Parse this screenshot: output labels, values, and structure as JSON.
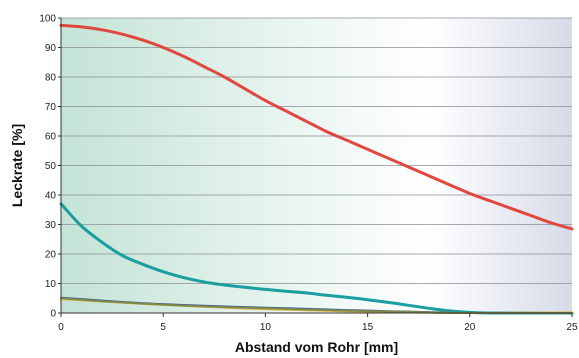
{
  "chart_data": {
    "type": "line",
    "title": "",
    "xlabel": "Abstand vom Rohr [mm]",
    "ylabel": "Leckrate [%]",
    "xlim": [
      0,
      25
    ],
    "ylim": [
      0,
      100
    ],
    "xticks": [
      0,
      5,
      10,
      15,
      20,
      25
    ],
    "yticks": [
      0,
      10,
      20,
      30,
      40,
      50,
      60,
      70,
      80,
      90,
      100
    ],
    "grid": "horizontal",
    "background": "gradient teal-green (left) to white to pale blue-grey (right)",
    "series": [
      {
        "color": "#e0483f",
        "points": [
          [
            0,
            97.5
          ],
          [
            1,
            97
          ],
          [
            2,
            96
          ],
          [
            3,
            94.5
          ],
          [
            4,
            92.5
          ],
          [
            5,
            90
          ],
          [
            6,
            87
          ],
          [
            7,
            83.5
          ],
          [
            8,
            80
          ],
          [
            9,
            76
          ],
          [
            10,
            72
          ],
          [
            11,
            68.5
          ],
          [
            12,
            65
          ],
          [
            13,
            61.5
          ],
          [
            14,
            58.5
          ],
          [
            15,
            55.5
          ],
          [
            16,
            52.5
          ],
          [
            17,
            49.5
          ],
          [
            18,
            46.5
          ],
          [
            19,
            43.5
          ],
          [
            20,
            40.5
          ],
          [
            21,
            38
          ],
          [
            22,
            35.5
          ],
          [
            23,
            33
          ],
          [
            24,
            30.5
          ],
          [
            25,
            28.5
          ]
        ]
      },
      {
        "color": "#1a9ea0",
        "points": [
          [
            0,
            37
          ],
          [
            1,
            29.5
          ],
          [
            2,
            24
          ],
          [
            3,
            19.5
          ],
          [
            4,
            16.5
          ],
          [
            5,
            14
          ],
          [
            6,
            12
          ],
          [
            7,
            10.5
          ],
          [
            8,
            9.5
          ],
          [
            9,
            8.7
          ],
          [
            10,
            8
          ],
          [
            11,
            7.4
          ],
          [
            12,
            6.8
          ],
          [
            13,
            6
          ],
          [
            14,
            5.3
          ],
          [
            15,
            4.5
          ],
          [
            16,
            3.6
          ],
          [
            17,
            2.6
          ],
          [
            18,
            1.6
          ],
          [
            19,
            0.7
          ],
          [
            20,
            0.2
          ],
          [
            21,
            0
          ],
          [
            22,
            0
          ],
          [
            23,
            0
          ],
          [
            24,
            0
          ],
          [
            25,
            0
          ]
        ]
      },
      {
        "color": "#3a4f9a",
        "points": [
          [
            0,
            5.2
          ],
          [
            2,
            4.2
          ],
          [
            4,
            3.3
          ],
          [
            6,
            2.7
          ],
          [
            8,
            2.2
          ],
          [
            10,
            1.8
          ],
          [
            12,
            1.4
          ],
          [
            14,
            1
          ],
          [
            16,
            0.6
          ],
          [
            18,
            0.3
          ],
          [
            19,
            0.1
          ],
          [
            20,
            0
          ],
          [
            25,
            0
          ]
        ]
      },
      {
        "color": "#e0b64a",
        "points": [
          [
            0,
            4.7
          ],
          [
            2,
            3.9
          ],
          [
            4,
            3.1
          ],
          [
            6,
            2.4
          ],
          [
            8,
            1.8
          ],
          [
            10,
            1.3
          ],
          [
            12,
            0.9
          ],
          [
            14,
            0.6
          ],
          [
            16,
            0.3
          ],
          [
            18,
            0.1
          ],
          [
            20,
            0
          ],
          [
            25,
            0.2
          ]
        ]
      },
      {
        "color": "#7d8a4a",
        "points": [
          [
            0,
            5
          ],
          [
            2,
            4
          ],
          [
            4,
            3.2
          ],
          [
            6,
            2.5
          ],
          [
            8,
            2
          ],
          [
            10,
            1.6
          ],
          [
            12,
            1.2
          ],
          [
            14,
            0.8
          ],
          [
            16,
            0.5
          ],
          [
            18,
            0.2
          ],
          [
            20,
            0
          ],
          [
            25,
            0
          ]
        ]
      }
    ]
  }
}
